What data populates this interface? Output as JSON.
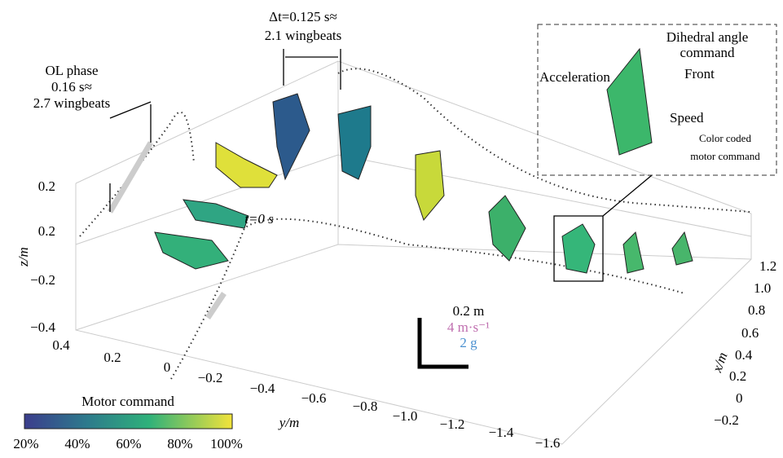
{
  "annotations": {
    "ol_phase": [
      "OL phase",
      "0.16 s≈",
      "2.7 wingbeats"
    ],
    "delta_t": [
      "Δt=0.125 s≈",
      "2.1 wingbeats"
    ],
    "t0": "t=0 s"
  },
  "scale": {
    "length": "0.2 m",
    "speed": "4 m·s⁻¹",
    "acceleration": "2 g"
  },
  "inset": {
    "dihedral": [
      "Dihedral angle",
      "command"
    ],
    "acceleration": "Acceleration",
    "front": "Front",
    "speed": "Speed",
    "color": [
      "Color coded",
      "motor command"
    ]
  },
  "axes": {
    "z": {
      "title": "z/m",
      "ticks": [
        "0.2",
        "0.2",
        "−0.2",
        "−0.4"
      ]
    },
    "y": {
      "title": "y/m",
      "ticks": [
        "0.4",
        "0.2",
        "0",
        "−0.2",
        "−0.4",
        "−0.6",
        "−0.8",
        "−1.0",
        "−1.2",
        "−1.4",
        "−1.6"
      ]
    },
    "x": {
      "title": "x/m",
      "ticks": [
        "1.2",
        "1.0",
        "0.8",
        "0.6",
        "0.4",
        "0.2",
        "0",
        "−0.2"
      ]
    }
  },
  "colorbar": {
    "title": "Motor command",
    "labels": [
      "20%",
      "40%",
      "60%",
      "80%",
      "100%"
    ]
  }
}
